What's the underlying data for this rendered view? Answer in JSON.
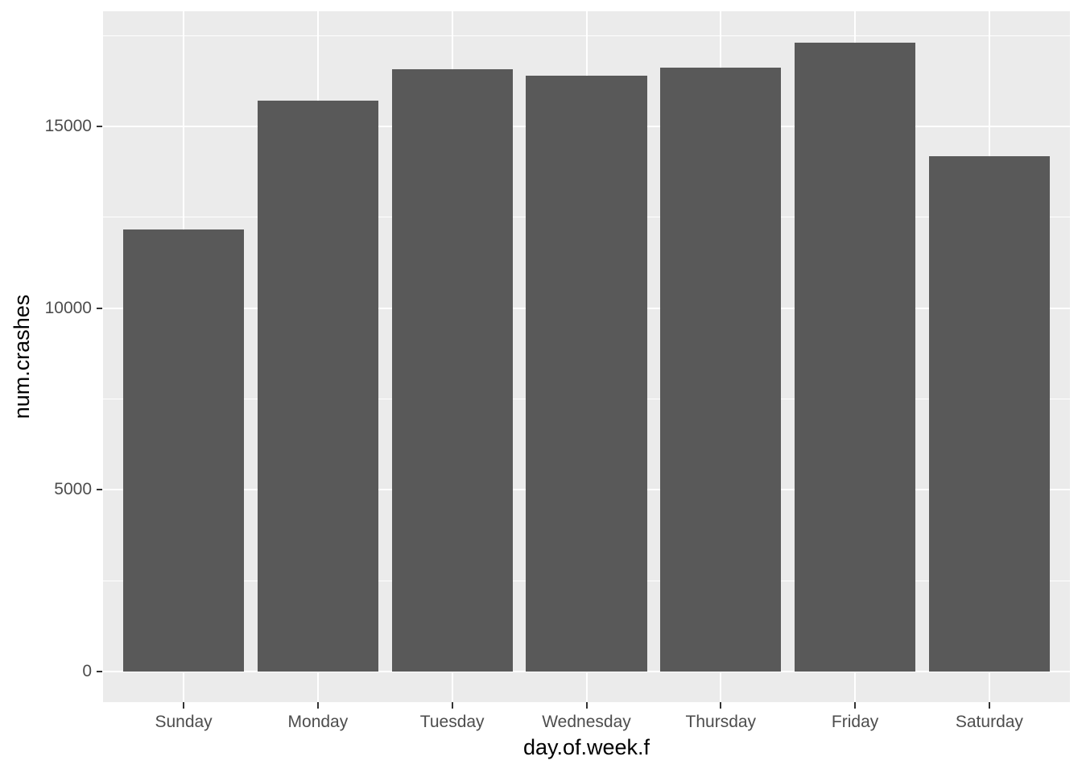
{
  "figure": {
    "background_color": "#FFFFFF"
  },
  "chart_data": {
    "type": "bar",
    "title": "",
    "xlabel": "day.of.week.f",
    "ylabel": "num.crashes",
    "categories": [
      "Sunday",
      "Monday",
      "Tuesday",
      "Wednesday",
      "Thursday",
      "Friday",
      "Saturday"
    ],
    "values": [
      12160,
      15710,
      16570,
      16400,
      16620,
      17300,
      14190
    ],
    "y_ticks": [
      0,
      5000,
      10000,
      15000
    ],
    "y_tick_labels": [
      "0",
      "5000",
      "10000",
      "15000"
    ],
    "y_minor_gridlines": [
      2500,
      7500,
      12500,
      17500
    ],
    "y_axis_top_value": 18170,
    "y_axis_bottom_value": -840,
    "grid": "on",
    "legend": "none",
    "bar_relative_width": 0.9,
    "style": {
      "bar_fill": "#595959",
      "panel_background": "#EBEBEB",
      "gridline_color": "#FFFFFF",
      "axis_text_color": "#4D4D4D",
      "axis_title_color": "#000000",
      "tick_mark_color": "#333333"
    }
  }
}
